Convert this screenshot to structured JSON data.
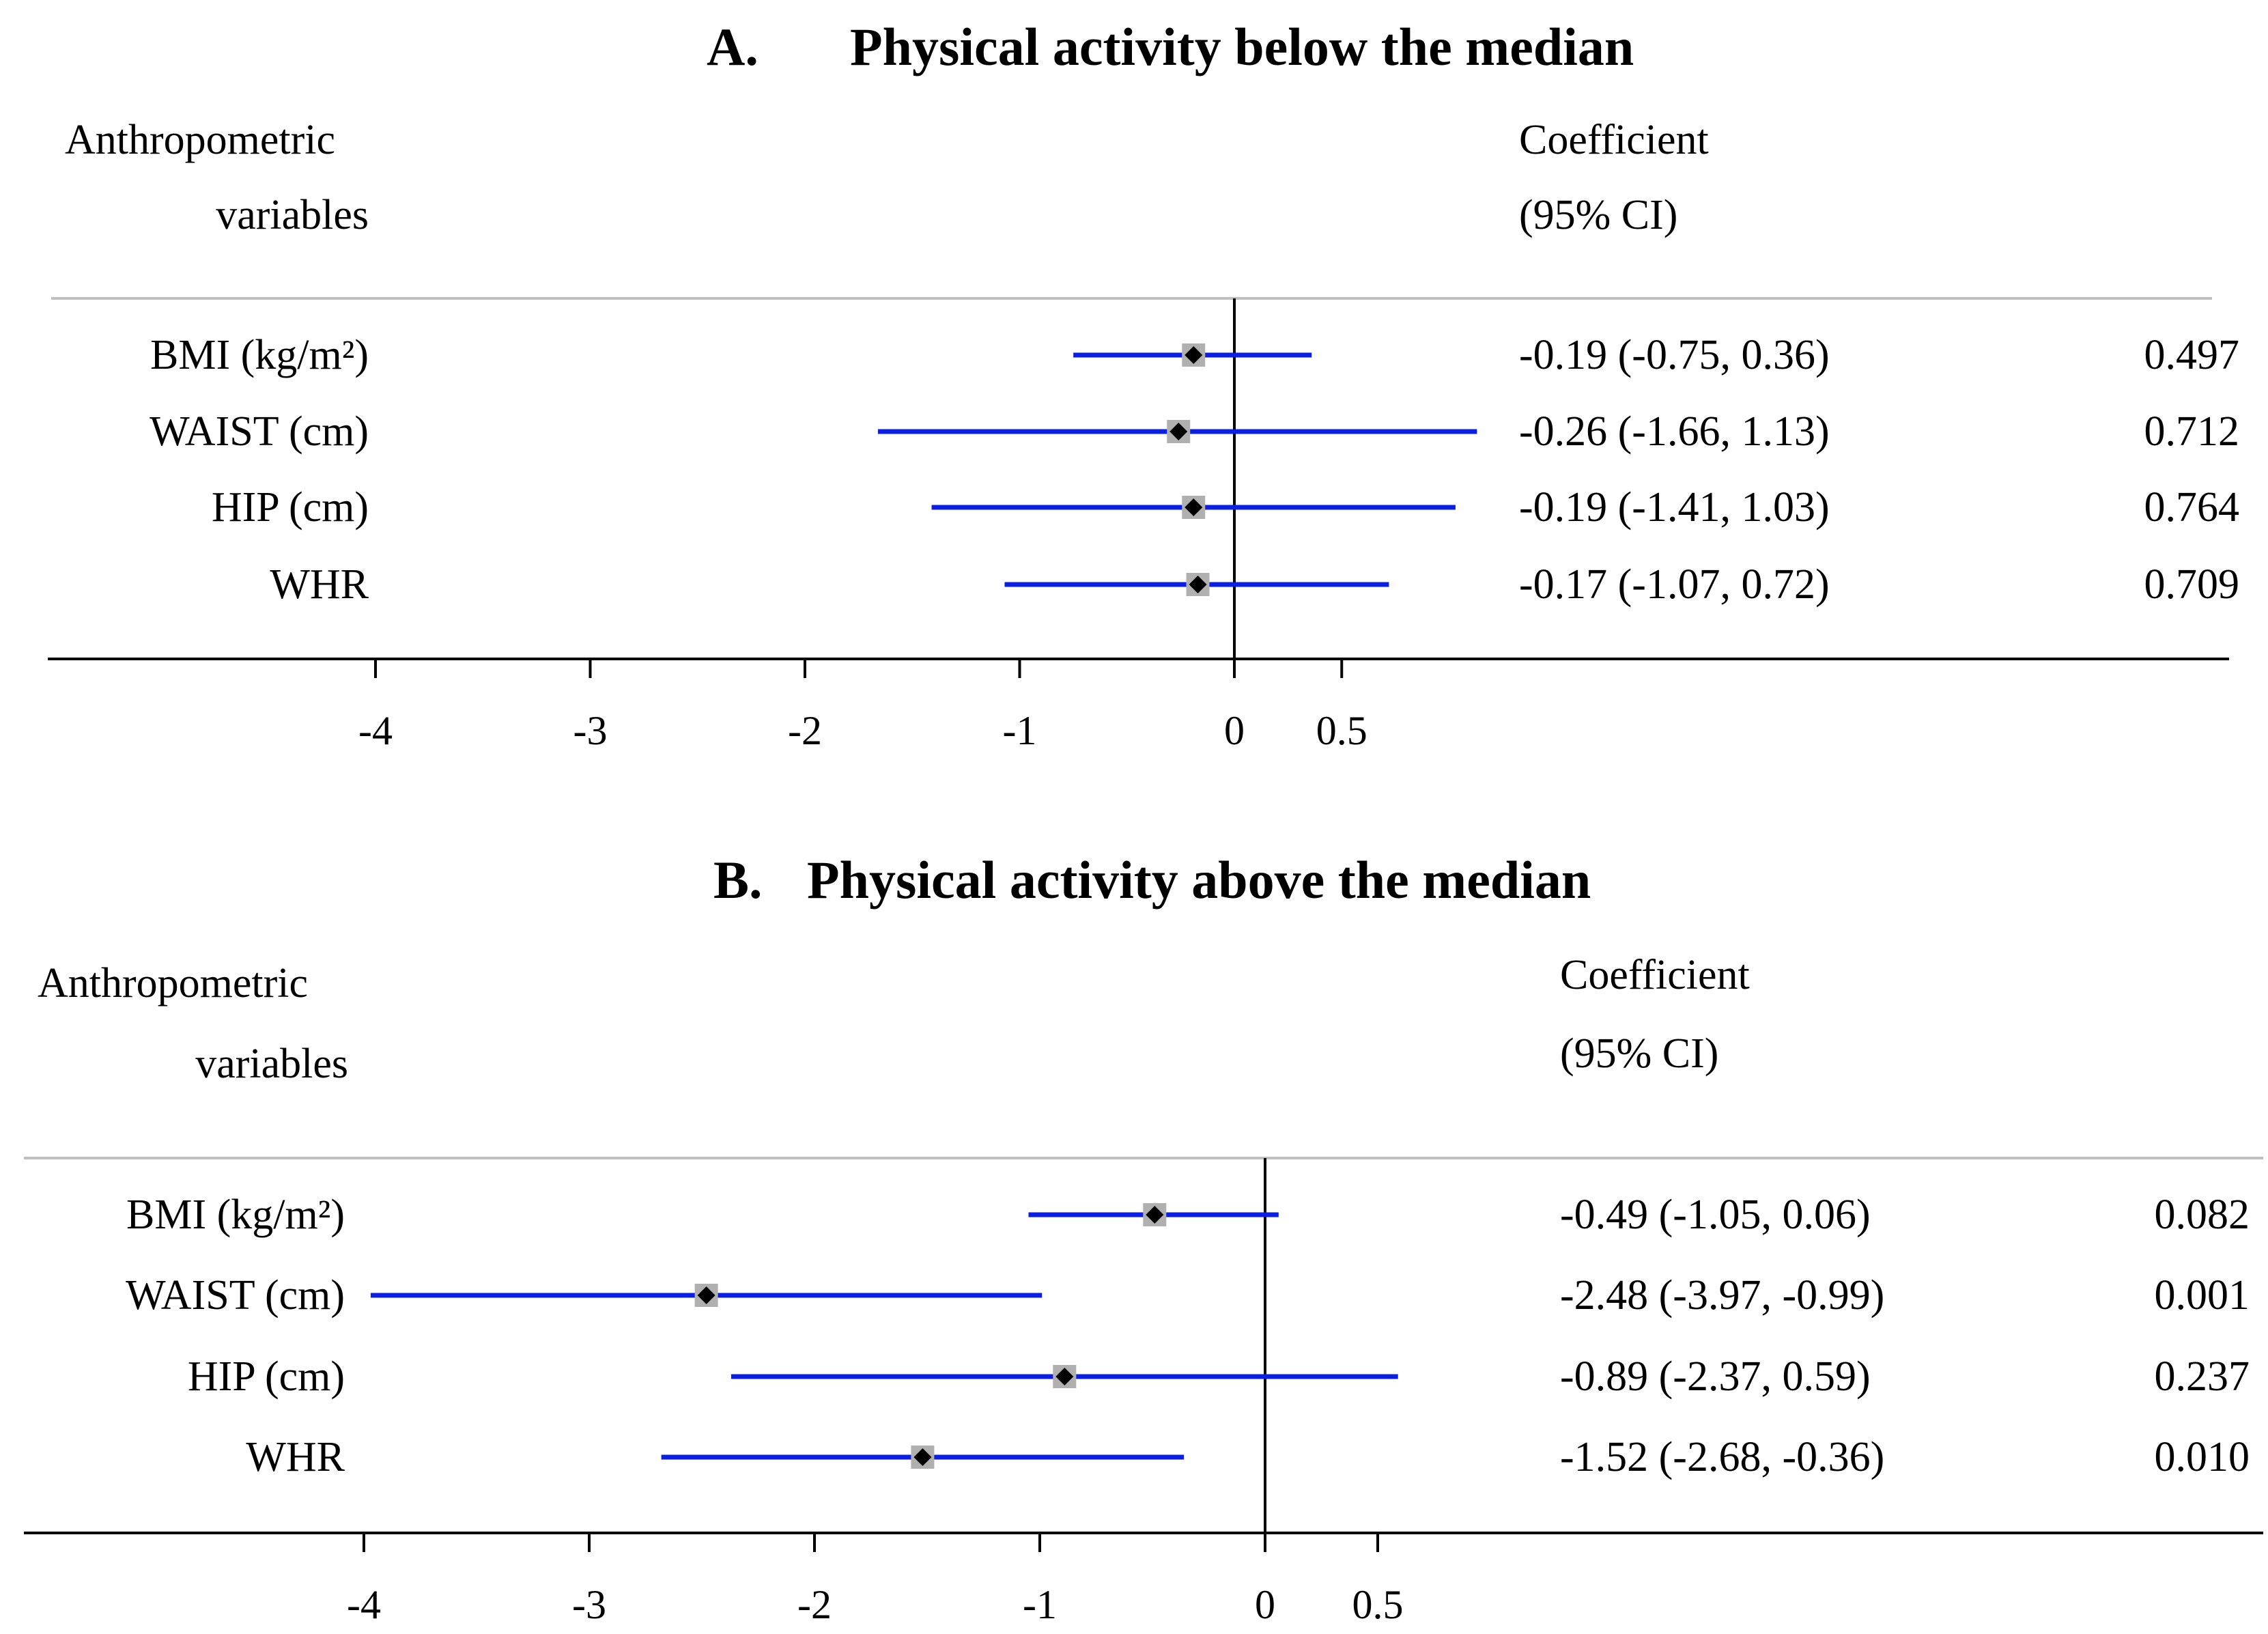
{
  "chart_data": [
    {
      "type": "forest",
      "title_letter": "A.",
      "title": "Physical activity below the median",
      "header_left": [
        "Anthropometric",
        "variables"
      ],
      "header_coef": [
        "Coefficient",
        "(95% CI)"
      ],
      "x_ticks": [
        {
          "v": -4,
          "label": "-4"
        },
        {
          "v": -3,
          "label": "-3"
        },
        {
          "v": -2,
          "label": "-2"
        },
        {
          "v": -1,
          "label": "-1"
        },
        {
          "v": 0,
          "label": "0"
        },
        {
          "v": 0.5,
          "label": "0.5"
        }
      ],
      "rows": [
        {
          "label": "BMI (kg/m²)",
          "coef": -0.19,
          "lo": -0.75,
          "hi": 0.36,
          "ci_text": "-0.19 (-0.75, 0.36)",
          "p": "0.497"
        },
        {
          "label": "WAIST (cm)",
          "coef": -0.26,
          "lo": -1.66,
          "hi": 1.13,
          "ci_text": "-0.26 (-1.66, 1.13)",
          "p": "0.712"
        },
        {
          "label": "HIP (cm)",
          "coef": -0.19,
          "lo": -1.41,
          "hi": 1.03,
          "ci_text": "-0.19 (-1.41, 1.03)",
          "p": "0.764"
        },
        {
          "label": "WHR",
          "coef": -0.17,
          "lo": -1.07,
          "hi": 0.72,
          "ci_text": "-0.17 (-1.07, 0.72)",
          "p": "0.709"
        }
      ]
    },
    {
      "type": "forest",
      "title_letter": "B.",
      "title": "Physical activity above the median",
      "header_left": [
        "Anthropometric",
        "variables"
      ],
      "header_coef": [
        "Coefficient",
        "(95% CI)"
      ],
      "x_ticks": [
        {
          "v": -4,
          "label": "-4"
        },
        {
          "v": -3,
          "label": "-3"
        },
        {
          "v": -2,
          "label": "-2"
        },
        {
          "v": -1,
          "label": "-1"
        },
        {
          "v": 0,
          "label": "0"
        },
        {
          "v": 0.5,
          "label": "0.5"
        }
      ],
      "rows": [
        {
          "label": "BMI (kg/m²)",
          "coef": -0.49,
          "lo": -1.05,
          "hi": 0.06,
          "ci_text": "-0.49 (-1.05, 0.06)",
          "p": "0.082"
        },
        {
          "label": "WAIST (cm)",
          "coef": -2.48,
          "lo": -3.97,
          "hi": -0.99,
          "ci_text": "-2.48 (-3.97, -0.99)",
          "p": "0.001"
        },
        {
          "label": "HIP (cm)",
          "coef": -0.89,
          "lo": -2.37,
          "hi": 0.59,
          "ci_text": "-0.89 (-2.37, 0.59)",
          "p": "0.237"
        },
        {
          "label": "WHR",
          "coef": -1.52,
          "lo": -2.68,
          "hi": -0.36,
          "ci_text": "-1.52 (-2.68, -0.36)",
          "p": "0.010"
        }
      ]
    }
  ],
  "colors": {
    "ci_line": "#0a1ee6",
    "marker_box": "#b0b0b0",
    "marker_dot": "#000000",
    "axis": "#000000",
    "rule": "#c0c0c0"
  }
}
